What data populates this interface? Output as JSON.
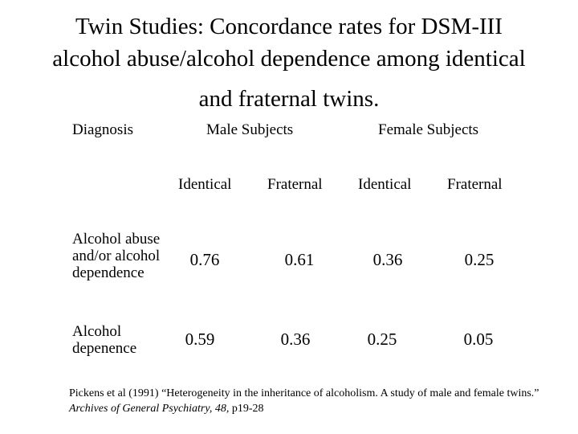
{
  "title": {
    "line1": "Twin Studies: Concordance rates for DSM-III",
    "line2": "alcohol abuse/alcohol dependence among identical",
    "line3": "and fraternal twins."
  },
  "table": {
    "diagnosis_header": "Diagnosis",
    "male_header": "Male Subjects",
    "female_header": "Female Subjects",
    "subheaders": [
      "Identical",
      "Fraternal",
      "Identical",
      "Fraternal"
    ],
    "rows": [
      {
        "label": "Alcohol abuse and/or alcohol dependence",
        "values": [
          "0.76",
          "0.61",
          "0.36",
          "0.25"
        ]
      },
      {
        "label": "Alcohol depenence",
        "values": [
          "0.59",
          "0.36",
          "0.25",
          "0.05"
        ]
      }
    ]
  },
  "citation": {
    "text": "Pickens et al (1991) “Heterogeneity in the inheritance of alcoholism.  A study of male and female twins.”",
    "journal": "Archives of General Psychiatry, 48,",
    "pages": "p19-28"
  }
}
